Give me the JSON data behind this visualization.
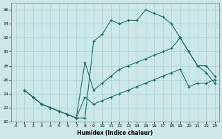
{
  "xlabel": "Humidex (Indice chaleur)",
  "ylabel": "",
  "background_color": "#cce8e8",
  "grid_color": "#aacece",
  "line_color": "#1a6b6b",
  "xlim": [
    -0.5,
    23.5
  ],
  "ylim": [
    20,
    37
  ],
  "xticks": [
    0,
    1,
    2,
    3,
    4,
    5,
    6,
    7,
    8,
    9,
    10,
    11,
    12,
    13,
    14,
    15,
    16,
    17,
    18,
    19,
    20,
    21,
    22,
    23
  ],
  "yticks": [
    20,
    22,
    24,
    26,
    28,
    30,
    32,
    34,
    36
  ],
  "line1_x": [
    1,
    2,
    3,
    4,
    5,
    6,
    7,
    8,
    9,
    10,
    11,
    12,
    13,
    14,
    15,
    16,
    17,
    18,
    19,
    20,
    21,
    22,
    23
  ],
  "line1_y": [
    24.5,
    23.5,
    22.5,
    22.0,
    21.5,
    21.0,
    20.5,
    20.5,
    31.5,
    32.5,
    34.5,
    34.0,
    34.5,
    34.5,
    36.0,
    35.5,
    35.0,
    34.0,
    32.0,
    30.0,
    28.0,
    27.0,
    25.5
  ],
  "line2_x": [
    1,
    2,
    3,
    4,
    5,
    6,
    7,
    8,
    9,
    10,
    11,
    12,
    13,
    14,
    15,
    16,
    17,
    18,
    19,
    20,
    21,
    22,
    23
  ],
  "line2_y": [
    24.5,
    23.5,
    22.5,
    22.0,
    21.5,
    21.0,
    20.5,
    28.5,
    24.5,
    25.5,
    26.5,
    27.5,
    28.0,
    28.5,
    29.0,
    29.5,
    30.0,
    30.5,
    32.0,
    30.0,
    28.0,
    28.0,
    26.5
  ],
  "line3_x": [
    1,
    2,
    3,
    4,
    5,
    6,
    7,
    8,
    9,
    10,
    11,
    12,
    13,
    14,
    15,
    16,
    17,
    18,
    19,
    20,
    21,
    22,
    23
  ],
  "line3_y": [
    24.5,
    23.5,
    22.5,
    22.0,
    21.5,
    21.0,
    20.5,
    23.5,
    22.5,
    23.0,
    23.5,
    24.0,
    24.5,
    25.0,
    25.5,
    26.0,
    26.5,
    27.0,
    27.5,
    25.0,
    25.5,
    25.5,
    26.0
  ]
}
